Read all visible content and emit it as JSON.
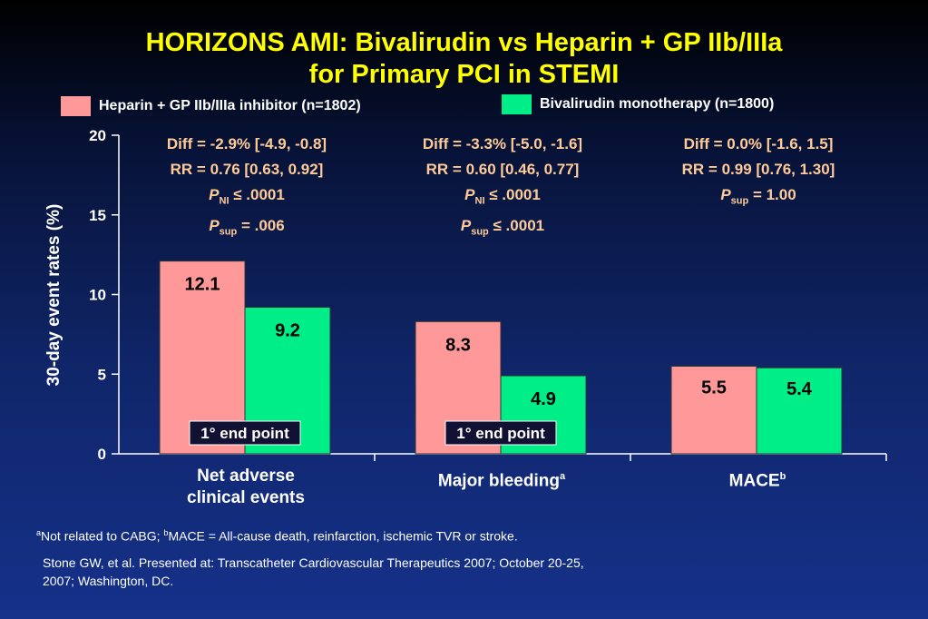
{
  "title_line1": "HORIZONS AMI: Bivalirudin vs Heparin + GP IIb/IIIa",
  "title_line2": "for Primary PCI in STEMI",
  "colors": {
    "heparin": "#ff9999",
    "bivalirudin": "#00ee88",
    "stat_text": "#ffcc99",
    "title": "#ffff00"
  },
  "chart_data": {
    "type": "bar",
    "categories": [
      "Net adverse clinical events",
      "Major bleeding",
      "MACE"
    ],
    "series": [
      {
        "name": "Heparin + GP IIb/IIIa inhibitor (n=1802)",
        "values": [
          12.1,
          8.3,
          5.5
        ]
      },
      {
        "name": "Bivalirudin monotherapy (n=1800)",
        "values": [
          9.2,
          4.9,
          5.4
        ]
      }
    ],
    "ylabel": "30-day event rates (%)",
    "ylim": [
      0,
      20
    ],
    "yticks": [
      "0",
      "5",
      "10",
      "15",
      "20"
    ],
    "value_labels": [
      [
        "12.1",
        "9.2"
      ],
      [
        "8.3",
        "4.9"
      ],
      [
        "5.5",
        "5.4"
      ]
    ],
    "endpoint_label": "1° end point",
    "legend_placement": "top",
    "grid": false
  },
  "stats": [
    {
      "diff": "Diff = -2.9% [-4.9, -0.8]",
      "rr": "RR = 0.76 [0.63, 0.92]",
      "p1_letter": "P",
      "p1_sub": "NI",
      "p1_rest": " ≤ .0001",
      "p2_letter": "P",
      "p2_sub": "sup",
      "p2_rest": " = .006"
    },
    {
      "diff": "Diff = -3.3% [-5.0, -1.6]",
      "rr": "RR = 0.60 [0.46, 0.77]",
      "p1_letter": "P",
      "p1_sub": "NI",
      "p1_rest": " ≤ .0001",
      "p2_letter": "P",
      "p2_sub": "sup",
      "p2_rest": " ≤ .0001"
    },
    {
      "diff": "Diff = 0.0% [-1.6, 1.5]",
      "rr": "RR = 0.99 [0.76, 1.30]",
      "p1_letter": "P",
      "p1_sub": "sup",
      "p1_rest": " = 1.00"
    }
  ],
  "cat_labels": {
    "c1_line1": "Net adverse",
    "c1_line2": "clinical events",
    "c2": "Major bleeding",
    "c2_sup": "a",
    "c3": "MACE",
    "c3_sup": "b"
  },
  "footnotes": {
    "a_mark": "a",
    "a_text": "Not related to CABG; ",
    "b_mark": "b",
    "b_text": "MACE = All-cause death, reinfarction, ischemic TVR or stroke.",
    "ref_line1": "Stone GW, et al. Presented at: Transcatheter Cardiovascular Therapeutics 2007; October 20-25,",
    "ref_line2": "2007; Washington, DC."
  }
}
